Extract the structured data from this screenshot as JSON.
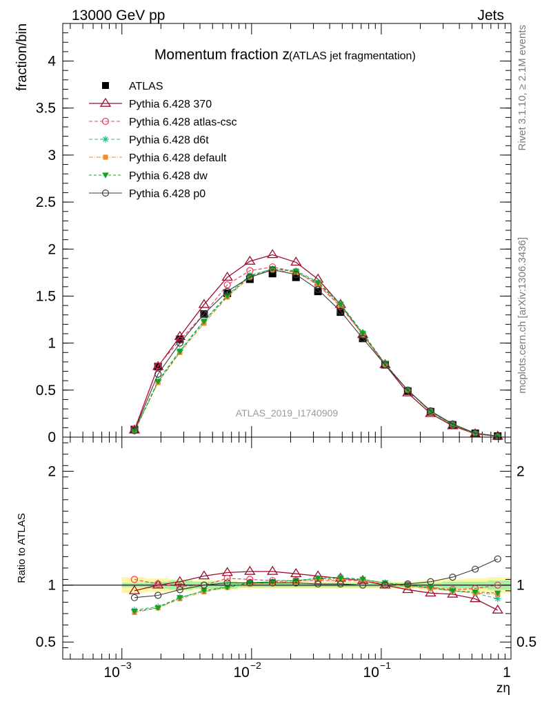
{
  "header": {
    "left": "13000 GeV pp",
    "right": "Jets"
  },
  "side_labels": {
    "rivet": "Rivet 3.1.10, ≥ 2.1M events",
    "mcplots": "mcplots.cern.ch [arXiv:1306.3436]"
  },
  "chart_data": {
    "type": "line",
    "title_main": "Momentum fraction z",
    "title_sub": "(ATLAS jet fragmentation)",
    "watermark": "ATLAS_2019_I1740909",
    "xlabel": "zη",
    "x_scale": "log",
    "xlim": [
      0.00035,
      1.0
    ],
    "x_ticks": [
      {
        "value": 0.001,
        "base": "10",
        "exp": "−3"
      },
      {
        "value": 0.01,
        "base": "10",
        "exp": "−2"
      },
      {
        "value": 0.1,
        "base": "10",
        "exp": "−1"
      },
      {
        "value": 1,
        "base": "1",
        "exp": ""
      }
    ],
    "top_panel": {
      "ylabel": "fraction/bin",
      "ylim": [
        0,
        4.4
      ],
      "y_ticks": [
        {
          "value": 0,
          "label": "0"
        },
        {
          "value": 0.5,
          "label": "0.5"
        },
        {
          "value": 1,
          "label": "1"
        },
        {
          "value": 1.5,
          "label": "1.5"
        },
        {
          "value": 2,
          "label": "2"
        },
        {
          "value": 2.5,
          "label": "2.5"
        },
        {
          "value": 3,
          "label": "3"
        },
        {
          "value": 3.5,
          "label": "3.5"
        },
        {
          "value": 4,
          "label": "4"
        }
      ]
    },
    "bottom_panel": {
      "ylabel": "Ratio to ATLAS",
      "ylim": [
        0.35,
        2.3
      ],
      "y_ticks": [
        {
          "value": 0.5,
          "label": "0.5"
        },
        {
          "value": 1,
          "label": "1"
        },
        {
          "value": 2,
          "label": "2"
        }
      ],
      "band_inner": [
        0.02,
        0.03,
        0.04,
        0.03,
        0.03,
        0.02,
        0.02,
        0.02,
        0.02,
        0.02,
        0.02,
        0.02,
        0.02,
        0.02,
        0.03,
        0.03,
        0.04,
        0.05
      ],
      "band_outer": [
        0.07,
        0.06,
        0.05,
        0.04,
        0.04,
        0.03,
        0.03,
        0.03,
        0.03,
        0.03,
        0.03,
        0.03,
        0.03,
        0.04,
        0.05,
        0.06,
        0.07,
        0.08
      ]
    },
    "x": [
      0.00125,
      0.0019,
      0.0028,
      0.0043,
      0.0065,
      0.0097,
      0.0145,
      0.022,
      0.0325,
      0.0485,
      0.072,
      0.107,
      0.16,
      0.24,
      0.355,
      0.53,
      0.79
    ],
    "bin_edges": [
      0.001,
      0.0015,
      0.0023,
      0.0035,
      0.0052,
      0.0078,
      0.0117,
      0.0176,
      0.0264,
      0.0396,
      0.059,
      0.088,
      0.132,
      0.197,
      0.295,
      0.44,
      0.66,
      1.0
    ],
    "data": {
      "name": "ATLAS",
      "values": [
        0.08,
        0.75,
        1.04,
        1.31,
        1.53,
        1.68,
        1.74,
        1.7,
        1.55,
        1.33,
        1.05,
        0.77,
        0.49,
        0.27,
        0.13,
        0.04,
        0.01
      ]
    },
    "series": [
      {
        "name": "Pythia 6.428 370",
        "color": "#9b0c2b",
        "dash": "",
        "marker": "triangle-open",
        "width": 1.3,
        "values": [
          0.075,
          0.75,
          1.07,
          1.41,
          1.7,
          1.87,
          1.94,
          1.86,
          1.68,
          1.41,
          1.09,
          0.77,
          0.47,
          0.25,
          0.12,
          0.035,
          0.008
        ],
        "ratio": [
          0.95,
          1.0,
          1.03,
          1.08,
          1.11,
          1.12,
          1.12,
          1.1,
          1.08,
          1.06,
          1.04,
          1.0,
          0.96,
          0.93,
          0.92,
          0.88,
          0.78
        ]
      },
      {
        "name": "Pythia 6.428 atlas-csc",
        "color": "#e8385b",
        "dash": "5,3",
        "marker": "circle-open",
        "width": 1.1,
        "values": [
          0.085,
          0.76,
          1.03,
          1.31,
          1.62,
          1.77,
          1.81,
          1.76,
          1.62,
          1.39,
          1.09,
          0.78,
          0.5,
          0.27,
          0.13,
          0.04,
          0.01
        ],
        "ratio": [
          1.05,
          1.01,
          0.99,
          1.0,
          1.06,
          1.05,
          1.04,
          1.04,
          1.04,
          1.04,
          1.04,
          1.01,
          1.0,
          0.98,
          0.96,
          0.97,
          1.0
        ]
      },
      {
        "name": "Pythia 6.428 d6t",
        "color": "#1abc8a",
        "dash": "5,3",
        "marker": "star",
        "width": 1.1,
        "values": [
          0.062,
          0.6,
          0.92,
          1.24,
          1.51,
          1.72,
          1.79,
          1.77,
          1.65,
          1.42,
          1.11,
          0.78,
          0.5,
          0.27,
          0.13,
          0.038,
          0.009
        ],
        "ratio": [
          0.78,
          0.81,
          0.89,
          0.95,
          0.99,
          1.02,
          1.03,
          1.04,
          1.06,
          1.07,
          1.05,
          1.02,
          1.0,
          0.97,
          0.95,
          0.93,
          0.88
        ]
      },
      {
        "name": "Pythia 6.428 default",
        "color": "#f28a30",
        "dash": "6,2,1,2",
        "marker": "square",
        "width": 1.1,
        "values": [
          0.06,
          0.58,
          0.9,
          1.21,
          1.49,
          1.7,
          1.78,
          1.75,
          1.63,
          1.4,
          1.09,
          0.77,
          0.5,
          0.27,
          0.13,
          0.038,
          0.009
        ],
        "ratio": [
          0.76,
          0.8,
          0.88,
          0.94,
          0.98,
          1.01,
          1.02,
          1.03,
          1.05,
          1.05,
          1.04,
          1.01,
          0.99,
          0.97,
          0.95,
          0.93,
          0.92
        ]
      },
      {
        "name": "Pythia 6.428 dw",
        "color": "#15a025",
        "dash": "4,3",
        "marker": "triangle-down",
        "width": 1.1,
        "values": [
          0.061,
          0.59,
          0.91,
          1.23,
          1.5,
          1.71,
          1.79,
          1.76,
          1.64,
          1.41,
          1.1,
          0.78,
          0.5,
          0.27,
          0.13,
          0.038,
          0.009
        ],
        "ratio": [
          0.77,
          0.8,
          0.89,
          0.95,
          0.98,
          1.02,
          1.03,
          1.04,
          1.06,
          1.06,
          1.05,
          1.02,
          1.0,
          0.98,
          0.95,
          0.94,
          0.93
        ]
      },
      {
        "name": "Pythia 6.428 p0",
        "color": "#3a3a3a",
        "dash": "",
        "marker": "circle-open",
        "width": 1.1,
        "values": [
          0.07,
          0.67,
          1.0,
          1.31,
          1.55,
          1.7,
          1.78,
          1.73,
          1.57,
          1.34,
          1.05,
          0.77,
          0.5,
          0.28,
          0.14,
          0.042,
          0.012
        ],
        "ratio": [
          0.89,
          0.91,
          0.96,
          1.0,
          1.02,
          1.02,
          1.02,
          1.02,
          1.01,
          1.01,
          1.0,
          1.0,
          1.01,
          1.03,
          1.07,
          1.14,
          1.23
        ]
      }
    ],
    "legend_position": "top-left"
  }
}
